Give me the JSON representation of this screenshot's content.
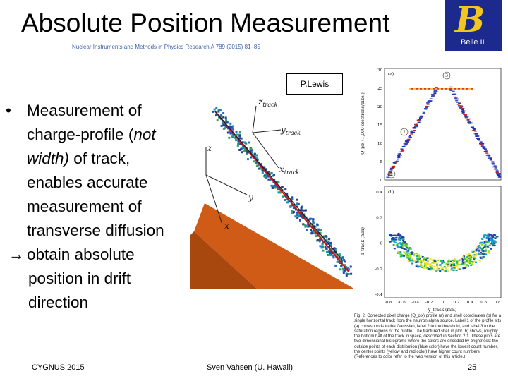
{
  "slide": {
    "title": "Absolute Position Measurement",
    "citation": "Nuclear Instruments and Methods in Physics Research A 789 (2015) 81–85",
    "credit": "P.Lewis",
    "logo_text": "Belle II",
    "bullets": {
      "b1_line1": "Measurement of",
      "b1_line2a": "charge-profile (",
      "b1_line2b": "not",
      "b1_line3a": "width)",
      "b1_line3b": " of track,",
      "b1_line4": "enables accurate",
      "b1_line5": "measurement of",
      "b1_line6": "transverse diffusion",
      "b2_line1": "obtain absolute",
      "b2_line2": "position in drift",
      "b2_line3": "direction"
    },
    "footer": {
      "left": "CYGNUS 2015",
      "center": "Sven Vahsen (U. Hawaii)",
      "right": "25"
    }
  },
  "figure_3d": {
    "axis_labels": {
      "z_track": "z_track",
      "y_track": "y_track",
      "x_track": "x_track",
      "z": "z",
      "y": "y",
      "x": "x"
    },
    "colors": {
      "plane": "#d2601a",
      "track_line": "#cc1111",
      "hits": "#2a5da8"
    }
  },
  "figure_plots": {
    "panel_a": {
      "label": "(a)",
      "ylabel": "Q_pix (1,000 electrons/pixel)",
      "yticks": [
        "0",
        "5",
        "10",
        "15",
        "20",
        "25",
        "30"
      ],
      "markers": [
        "1",
        "2",
        "3"
      ]
    },
    "panel_b": {
      "label": "(b)",
      "ylabel": "z_track (mm)",
      "xlabel": "y_track (mm)",
      "yticks": [
        "-0.4",
        "-0.2",
        "0",
        "0.2",
        "0.4"
      ],
      "xticks": [
        "-0.8",
        "-0.6",
        "-0.4",
        "-0.2",
        "0",
        "0.2",
        "0.4",
        "0.6",
        "0.8"
      ]
    },
    "caption": "Fig. 2. Corrected pixel charge (Q_pix) profile (a) and shell coordinates (b) for a single horizontal track from the neutron alpha source. Label 1 of the profile sits (a) corresponds to the Gaussian, label 2 to the threshold, and label 3 to the saturation regions of the profile. The fractured shell in plot (b) shows, roughly the bottom half of the track in space, described in Section 2.1. These plots are two-dimensional histograms where the colors are encoded by brightness: the outside points of each distribution (blue color) have the lowest count number, the center points (yellow and red color) have higher count numbers. (References to color refer to the web version of this article.)"
  }
}
